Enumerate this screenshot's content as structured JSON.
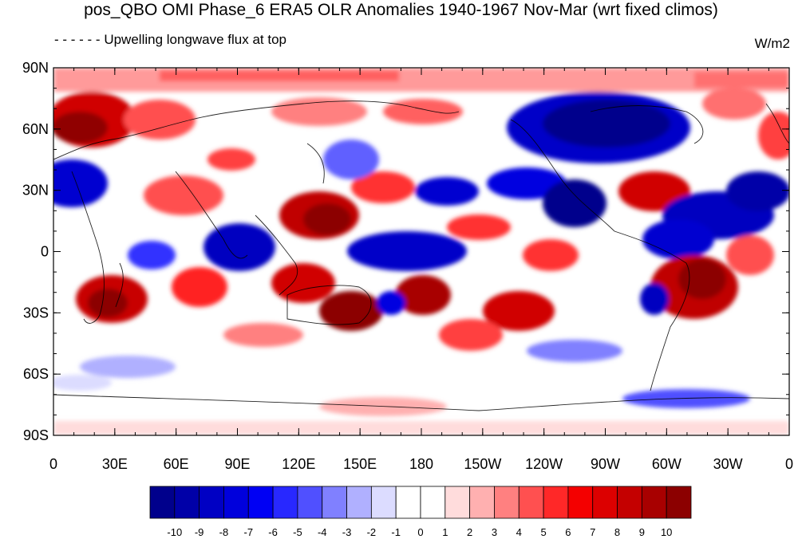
{
  "title": "pos_QBO OMI Phase_6 ERA5 OLR Anomalies 1940-1967 Nov-Mar (wrt fixed climos)",
  "subtitle": "Upwelling longwave flux at top",
  "units": "W/m2",
  "map": {
    "projection": "cylindrical-equidistant",
    "center_longitude": 180,
    "lat_range": [
      -90,
      90
    ],
    "lat_tick_labels": [
      "90N",
      "60N",
      "30N",
      "0",
      "30S",
      "60S",
      "90S"
    ],
    "lon_tick_labels": [
      "0",
      "30E",
      "60E",
      "90E",
      "120E",
      "150E",
      "180",
      "150W",
      "120W",
      "90W",
      "60W",
      "30W",
      "0"
    ],
    "field": "OLR anomaly",
    "coastlines": true
  },
  "colorbar": {
    "labels": [
      "-10",
      "-9",
      "-8",
      "-7",
      "-6",
      "-5",
      "-4",
      "-3",
      "-2",
      "-1",
      "0",
      "1",
      "2",
      "3",
      "4",
      "5",
      "6",
      "7",
      "8",
      "9",
      "10"
    ],
    "colors": [
      "#00008c",
      "#0000a8",
      "#0000c4",
      "#0000dc",
      "#0000f4",
      "#2828ff",
      "#5050ff",
      "#8080ff",
      "#b0b0ff",
      "#dcdcff",
      "#ffffff",
      "#ffffff",
      "#ffdcdc",
      "#ffb0b0",
      "#ff8080",
      "#ff5050",
      "#ff2828",
      "#f40000",
      "#dc0000",
      "#c40000",
      "#a80000",
      "#8c0000"
    ]
  }
}
